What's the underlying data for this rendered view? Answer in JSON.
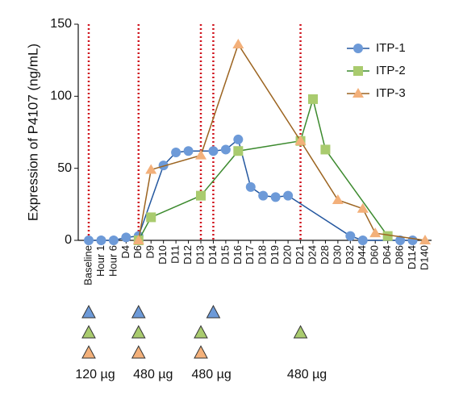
{
  "chart_data": {
    "type": "line",
    "y_label": "Expression of P4107 (ng/mL)",
    "categories": [
      "Baseline",
      "Hour 1",
      "Hour 6",
      "D4",
      "D6",
      "D9",
      "D10",
      "D11",
      "D12",
      "D13",
      "D14",
      "D15",
      "D16",
      "D17",
      "D18",
      "D19",
      "D20",
      "D21",
      "D24",
      "D28",
      "D30",
      "D32",
      "D44",
      "D60",
      "D64",
      "D86",
      "D114",
      "D140"
    ],
    "ylim": [
      0,
      150
    ],
    "yticks": [
      0,
      50,
      100,
      150
    ],
    "legend": "top-right",
    "dose_lines": [
      "Baseline",
      "D6",
      "D13",
      "D14",
      "D21"
    ],
    "dose_line_color": "#d0141e",
    "series": [
      {
        "name": "ITP-1",
        "color": "#6d9ad8",
        "line_color": "#24579f",
        "marker": "circle",
        "x": [
          "Baseline",
          "Hour 1",
          "Hour 6",
          "D4",
          "D6",
          "D10",
          "D11",
          "D12",
          "D14",
          "D15",
          "D16",
          "D17",
          "D18",
          "D19",
          "D20",
          "D32",
          "D44",
          "D86",
          "D114"
        ],
        "values": [
          0,
          0,
          0,
          2,
          3,
          52,
          61,
          62,
          62,
          63,
          70,
          37,
          31,
          30,
          31,
          3,
          0,
          0,
          0
        ]
      },
      {
        "name": "ITP-2",
        "color": "#a9cb6e",
        "line_color": "#3c8a2e",
        "marker": "square",
        "x": [
          "D6",
          "D9",
          "D13",
          "D16",
          "D21",
          "D24",
          "D28",
          "D64"
        ],
        "values": [
          0,
          16,
          31,
          62,
          69,
          98,
          63,
          3
        ]
      },
      {
        "name": "ITP-3",
        "color": "#f3b07a",
        "line_color": "#9c6420",
        "marker": "triangle",
        "x": [
          "D6",
          "D9",
          "D13",
          "D16",
          "D21",
          "D30",
          "D44",
          "D60",
          "D140"
        ],
        "values": [
          0,
          49,
          59,
          136,
          69,
          28,
          22,
          5,
          0
        ]
      }
    ],
    "doses": [
      {
        "label": "120 µg",
        "days": [
          "Baseline",
          "Baseline",
          "Baseline"
        ]
      },
      {
        "label": "480 µg",
        "days": [
          "D6",
          "D6",
          "D6"
        ]
      },
      {
        "label": "480 µg",
        "days": [
          "D14",
          "D13",
          "D13"
        ]
      },
      {
        "label": "480 µg",
        "days": [
          null,
          "D21",
          null
        ]
      }
    ]
  }
}
